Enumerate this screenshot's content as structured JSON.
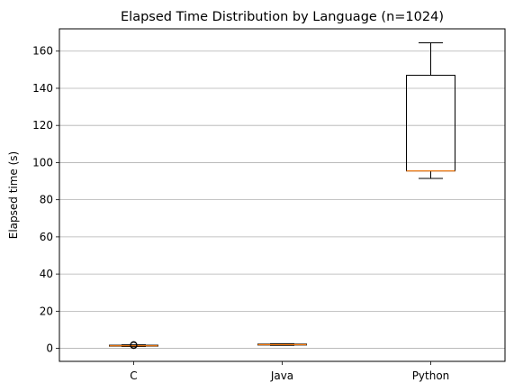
{
  "chart_data": {
    "type": "box",
    "title": "Elapsed Time Distribution by Language (n=1024)",
    "xlabel": "",
    "ylabel": "Elapsed time (s)",
    "ylim": [
      -7,
      172
    ],
    "yticks": [
      0,
      20,
      40,
      60,
      80,
      100,
      120,
      140,
      160
    ],
    "grid": "horizontal",
    "categories": [
      "C",
      "Java",
      "Python"
    ],
    "boxes": [
      {
        "category": "C",
        "whisker_low": 1.0,
        "q1": 1.2,
        "median": 1.4,
        "q3": 1.7,
        "whisker_high": 1.9,
        "outliers": [
          1.6,
          1.9
        ]
      },
      {
        "category": "Java",
        "whisker_low": 1.6,
        "q1": 1.8,
        "median": 2.0,
        "q3": 2.3,
        "whisker_high": 2.5,
        "outliers": []
      },
      {
        "category": "Python",
        "whisker_low": 91.5,
        "q1": 95.5,
        "median": 95.5,
        "q3": 147,
        "whisker_high": 164.5,
        "outliers": []
      }
    ],
    "colors": {
      "box": "#000000",
      "median": "#ff7f0e",
      "grid": "#b0b0b0",
      "frame": "#000000"
    }
  }
}
